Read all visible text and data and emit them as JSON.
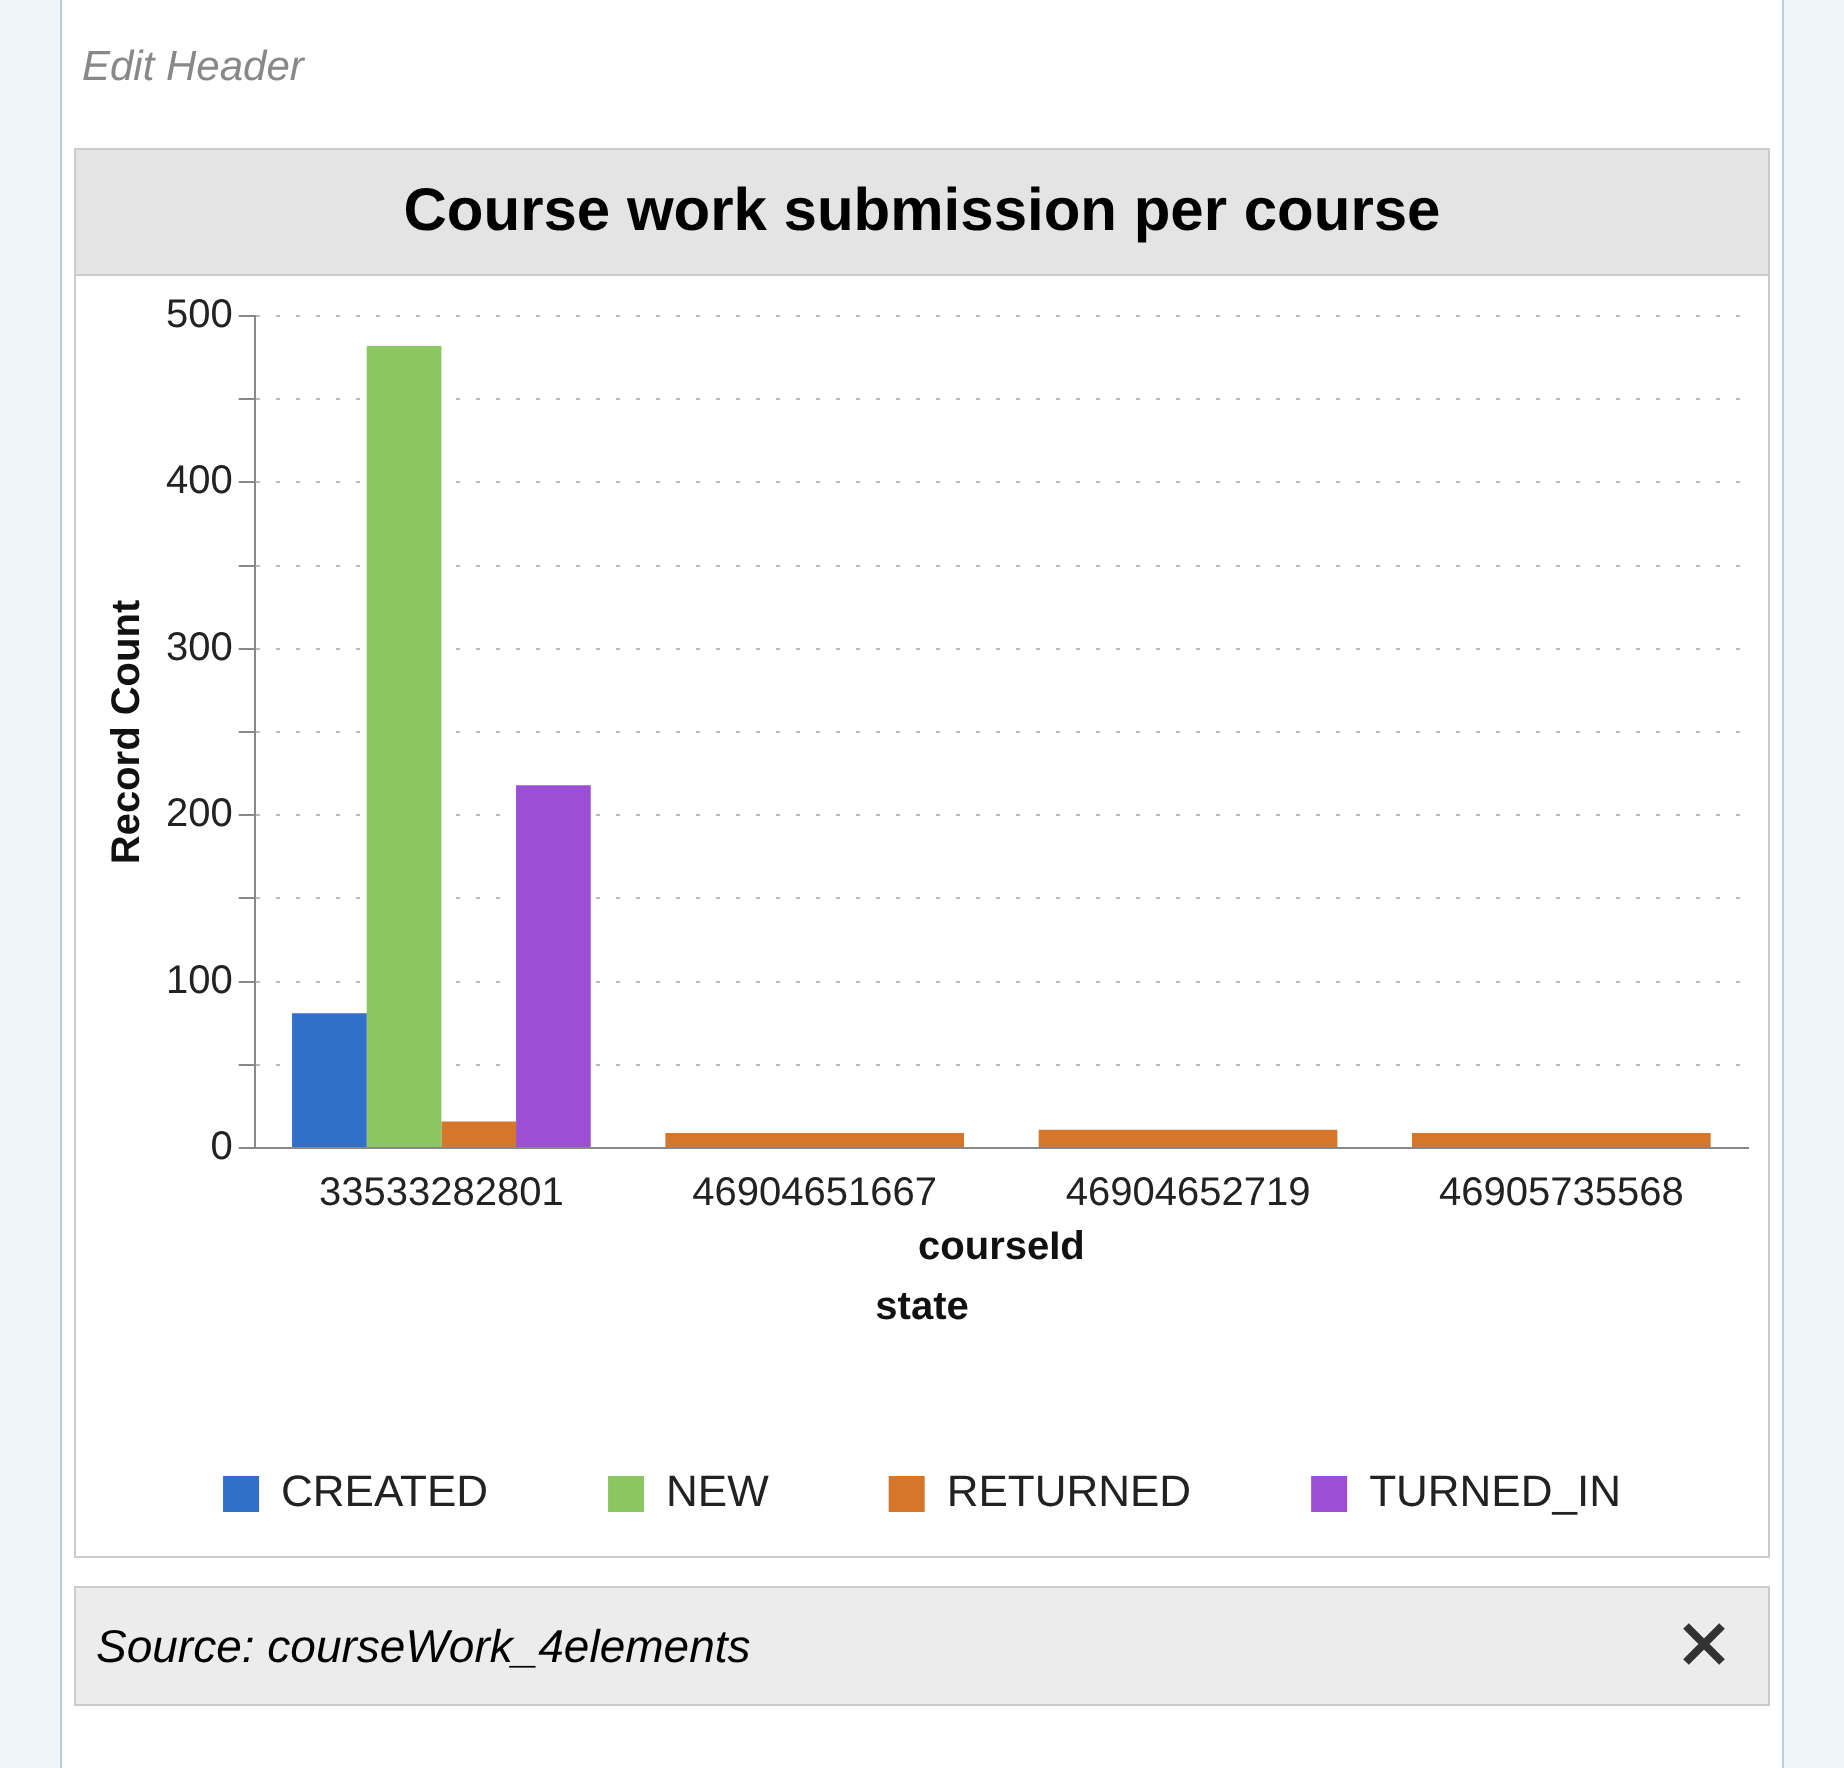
{
  "chart_data": {
    "type": "bar",
    "title": "Course work submission per course",
    "xlabel": "courseId",
    "ylabel": "Record Count",
    "legend_title": "state",
    "categories": [
      "33533282801",
      "46904651667",
      "46904652719",
      "46905735568"
    ],
    "series": [
      {
        "name": "CREATED",
        "color": "#3070c8",
        "values": [
          81,
          null,
          null,
          null
        ]
      },
      {
        "name": "NEW",
        "color": "#8cc660",
        "values": [
          482,
          null,
          null,
          null
        ]
      },
      {
        "name": "RETURNED",
        "color": "#d5762a",
        "values": [
          16,
          9,
          11,
          9
        ]
      },
      {
        "name": "TURNED_IN",
        "color": "#9b4fd4",
        "values": [
          218,
          null,
          null,
          null
        ]
      }
    ],
    "ylim": [
      0,
      500
    ],
    "yticks": [
      0,
      {
        "value": 50,
        "label": null
      },
      100,
      {
        "value": 150,
        "label": null
      },
      200,
      {
        "value": 250,
        "label": null
      },
      300,
      {
        "value": 350,
        "label": null
      },
      400,
      {
        "value": 450,
        "label": null
      },
      500
    ],
    "grid": "y",
    "legend": "bottom",
    "annotations": [
      "Edit Header",
      "Source: courseWork_4elements"
    ]
  }
}
